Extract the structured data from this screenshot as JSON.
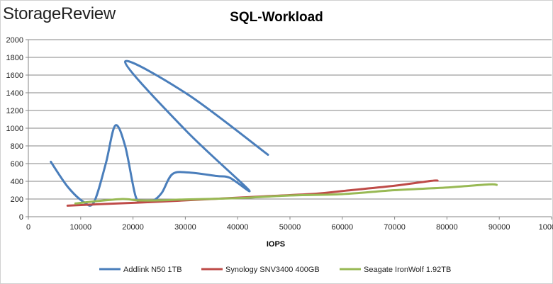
{
  "header": {
    "logo_text": "StorageReview"
  },
  "chart_data": {
    "type": "line",
    "title": "SQL-Workload",
    "xlabel": "IOPS",
    "ylabel": "",
    "xlim": [
      0,
      100000
    ],
    "ylim": [
      0,
      2000
    ],
    "x_ticks": [
      0,
      10000,
      20000,
      30000,
      40000,
      50000,
      60000,
      70000,
      80000,
      90000,
      100000
    ],
    "x_tick_labels": [
      "0",
      "10000",
      "20000",
      "30000",
      "40000",
      "50000",
      "60000",
      "70000",
      "80000",
      "90000",
      "100000"
    ],
    "y_ticks": [
      0,
      200,
      400,
      600,
      800,
      1000,
      1200,
      1400,
      1600,
      1800,
      2000
    ],
    "y_tick_labels": [
      "0",
      "200",
      "400",
      "600",
      "800",
      "1000",
      "1200",
      "1400",
      "1600",
      "1800",
      "2000"
    ],
    "grid": "horizontal",
    "legend_position": "bottom",
    "series": [
      {
        "name": "Addlink N50 1TB",
        "color": "#4a7ebb",
        "points": [
          [
            4300,
            620
          ],
          [
            7500,
            340
          ],
          [
            10500,
            170
          ],
          [
            12500,
            160
          ],
          [
            14800,
            600
          ],
          [
            16600,
            1030
          ],
          [
            18500,
            800
          ],
          [
            20500,
            230
          ],
          [
            22000,
            170
          ],
          [
            23800,
            180
          ],
          [
            25500,
            270
          ],
          [
            27500,
            480
          ],
          [
            30500,
            500
          ],
          [
            36000,
            460
          ],
          [
            38500,
            440
          ],
          [
            42000,
            310
          ],
          [
            30000,
            980
          ],
          [
            18500,
            1750
          ],
          [
            30500,
            1380
          ],
          [
            45800,
            700
          ]
        ]
      },
      {
        "name": "Synology SNV3400 400GB",
        "color": "#be4b48",
        "points": [
          [
            7500,
            125
          ],
          [
            15000,
            145
          ],
          [
            25000,
            170
          ],
          [
            35000,
            200
          ],
          [
            45000,
            230
          ],
          [
            55000,
            260
          ],
          [
            60000,
            290
          ],
          [
            70000,
            350
          ],
          [
            77000,
            405
          ],
          [
            78200,
            408
          ]
        ]
      },
      {
        "name": "Seagate IronWolf 1.92TB",
        "color": "#98b954",
        "points": [
          [
            9000,
            150
          ],
          [
            13000,
            175
          ],
          [
            18000,
            200
          ],
          [
            21000,
            185
          ],
          [
            25000,
            185
          ],
          [
            30000,
            195
          ],
          [
            40000,
            210
          ],
          [
            50000,
            240
          ],
          [
            60000,
            255
          ],
          [
            70000,
            300
          ],
          [
            80000,
            330
          ],
          [
            88000,
            365
          ],
          [
            89500,
            360
          ]
        ]
      }
    ]
  }
}
